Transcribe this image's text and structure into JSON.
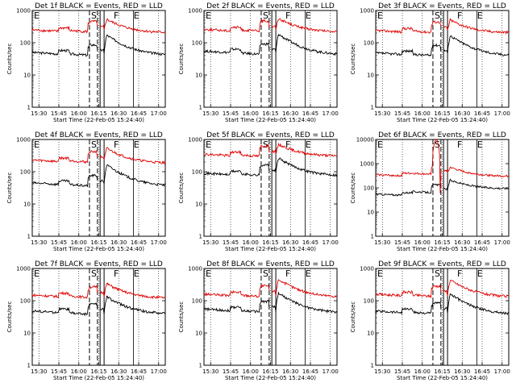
{
  "figure": {
    "colors": {
      "events": "#000000",
      "lld": "#e00000",
      "background": "#ffffff"
    },
    "x_tick_labels": [
      "15:30",
      "15:45",
      "16:00",
      "16:15",
      "16:30",
      "16:45",
      "17:00"
    ],
    "y_tick_labels": [
      "1",
      "10",
      "100",
      "1000"
    ],
    "y_tick_labels_big": [
      "1",
      "10",
      "100",
      "1000",
      "10000"
    ]
  },
  "chart_data": [
    {
      "type": "line",
      "title": "Det 1f BLACK = Events, RED = LLD",
      "xlabel": "Start Time (22-Feb-05 15:24:40)",
      "ylabel": "Counts/sec",
      "x_range_minutes_after_start": [
        0,
        100
      ],
      "ylim": [
        1,
        1000
      ],
      "log_y": true,
      "markers": [
        {
          "label": "E",
          "minute": 0
        },
        {
          "label": "S",
          "minute": 43
        },
        {
          "label": "F",
          "minute": 60
        },
        {
          "label": "E",
          "minute": 75
        }
      ],
      "dashed_lines_minutes": [
        43,
        49
      ],
      "solid_lines_minutes": [
        51,
        54
      ],
      "series": [
        {
          "name": "Events",
          "color": "#000000",
          "base": 50,
          "pre_dip": 45,
          "peak": 170,
          "end": 38
        },
        {
          "name": "LLD",
          "color": "#e00000",
          "base": 250,
          "pre_dip": 240,
          "peak": 520,
          "end": 190
        }
      ]
    },
    {
      "type": "line",
      "title": "Det 2f BLACK = Events, RED = LLD",
      "xlabel": "Start Time (22-Feb-05 15:24:40)",
      "ylabel": "Counts/sec",
      "x_range_minutes_after_start": [
        0,
        100
      ],
      "ylim": [
        1,
        1000
      ],
      "log_y": true,
      "markers": [
        {
          "label": "E",
          "minute": 0
        },
        {
          "label": "S",
          "minute": 43
        },
        {
          "label": "F",
          "minute": 60
        },
        {
          "label": "E",
          "minute": 75
        }
      ],
      "dashed_lines_minutes": [
        43,
        49
      ],
      "solid_lines_minutes": [
        51,
        54
      ],
      "series": [
        {
          "name": "Events",
          "color": "#000000",
          "base": 55,
          "pre_dip": 48,
          "peak": 180,
          "end": 38
        },
        {
          "name": "LLD",
          "color": "#e00000",
          "base": 260,
          "pre_dip": 250,
          "peak": 560,
          "end": 200
        }
      ]
    },
    {
      "type": "line",
      "title": "Det 3f BLACK = Events, RED = LLD",
      "xlabel": "Start Time (22-Feb-05 15:24:40)",
      "ylabel": "Counts/sec",
      "x_range_minutes_after_start": [
        0,
        100
      ],
      "ylim": [
        1,
        1000
      ],
      "log_y": true,
      "markers": [
        {
          "label": "E",
          "minute": 0
        },
        {
          "label": "S",
          "minute": 43
        },
        {
          "label": "F",
          "minute": 60
        },
        {
          "label": "E",
          "minute": 75
        }
      ],
      "dashed_lines_minutes": [
        43,
        49
      ],
      "solid_lines_minutes": [
        51,
        54
      ],
      "series": [
        {
          "name": "Events",
          "color": "#000000",
          "base": 48,
          "pre_dip": 44,
          "peak": 165,
          "end": 36
        },
        {
          "name": "LLD",
          "color": "#e00000",
          "base": 240,
          "pre_dip": 230,
          "peak": 500,
          "end": 190
        }
      ]
    },
    {
      "type": "line",
      "title": "Det 4f BLACK = Events, RED = LLD",
      "xlabel": "Start Time (22-Feb-05 15:24:40)",
      "ylabel": "Counts/sec",
      "x_range_minutes_after_start": [
        0,
        100
      ],
      "ylim": [
        1,
        1000
      ],
      "log_y": true,
      "markers": [
        {
          "label": "E",
          "minute": 0
        },
        {
          "label": "S",
          "minute": 43
        },
        {
          "label": "F",
          "minute": 60
        },
        {
          "label": "E",
          "minute": 75
        }
      ],
      "dashed_lines_minutes": [
        43,
        49
      ],
      "solid_lines_minutes": [
        51,
        54
      ],
      "series": [
        {
          "name": "Events",
          "color": "#000000",
          "base": 45,
          "pre_dip": 40,
          "peak": 160,
          "end": 33
        },
        {
          "name": "LLD",
          "color": "#e00000",
          "base": 230,
          "pre_dip": 220,
          "peak": 520,
          "end": 170
        }
      ]
    },
    {
      "type": "line",
      "title": "Det 5f BLACK = Events, RED = LLD",
      "xlabel": "Start Time (22-Feb-05 15:24:40)",
      "ylabel": "Counts/sec",
      "x_range_minutes_after_start": [
        0,
        100
      ],
      "ylim": [
        1,
        1000
      ],
      "log_y": true,
      "markers": [
        {
          "label": "E",
          "minute": 0
        },
        {
          "label": "S",
          "minute": 43
        },
        {
          "label": "F",
          "minute": 60
        },
        {
          "label": "E",
          "minute": 75
        }
      ],
      "dashed_lines_minutes": [
        43,
        49
      ],
      "solid_lines_minutes": [
        51,
        54
      ],
      "series": [
        {
          "name": "Events",
          "color": "#000000",
          "base": 90,
          "pre_dip": 85,
          "peak": 260,
          "end": 70
        },
        {
          "name": "LLD",
          "color": "#e00000",
          "base": 350,
          "pre_dip": 330,
          "peak": 700,
          "end": 290
        }
      ]
    },
    {
      "type": "line",
      "title": "Det 6f BLACK = Events, RED = LLD",
      "xlabel": "Start Time (22-Feb-05 15:24:40)",
      "ylabel": "Counts/sec",
      "x_range_minutes_after_start": [
        0,
        100
      ],
      "ylim": [
        1,
        10000
      ],
      "log_y": true,
      "markers": [
        {
          "label": "E",
          "minute": 0
        },
        {
          "label": "S",
          "minute": 43
        },
        {
          "label": "F",
          "minute": 60
        },
        {
          "label": "E",
          "minute": 75
        }
      ],
      "dashed_lines_minutes": [
        43,
        49
      ],
      "solid_lines_minutes": [
        51,
        54
      ],
      "series": [
        {
          "name": "Events",
          "color": "#000000",
          "base": 55,
          "pre_dip": 70,
          "peak": 220,
          "end": 100
        },
        {
          "name": "LLD",
          "color": "#e00000",
          "base": 350,
          "pre_dip": 400,
          "peak": 700,
          "end": 280,
          "burst": 9000
        }
      ]
    },
    {
      "type": "line",
      "title": "Det 7f BLACK = Events, RED = LLD",
      "xlabel": "Start Time (22-Feb-05 15:24:40)",
      "ylabel": "Counts/sec",
      "x_range_minutes_after_start": [
        0,
        100
      ],
      "ylim": [
        1,
        1000
      ],
      "log_y": true,
      "markers": [
        {
          "label": "E",
          "minute": 0
        },
        {
          "label": "S",
          "minute": 43
        },
        {
          "label": "F",
          "minute": 60
        },
        {
          "label": "E",
          "minute": 75
        }
      ],
      "dashed_lines_minutes": [
        43,
        49
      ],
      "solid_lines_minutes": [
        51,
        54
      ],
      "series": [
        {
          "name": "Events",
          "color": "#000000",
          "base": 48,
          "pre_dip": 42,
          "peak": 130,
          "end": 36
        },
        {
          "name": "LLD",
          "color": "#e00000",
          "base": 150,
          "pre_dip": 140,
          "peak": 330,
          "end": 110
        }
      ]
    },
    {
      "type": "line",
      "title": "Det 8f BLACK = Events, RED = LLD",
      "xlabel": "Start Time (22-Feb-05 15:24:40)",
      "ylabel": "Counts/sec",
      "x_range_minutes_after_start": [
        0,
        100
      ],
      "ylim": [
        1,
        1000
      ],
      "log_y": true,
      "markers": [
        {
          "label": "E",
          "minute": 0
        },
        {
          "label": "S",
          "minute": 43
        },
        {
          "label": "F",
          "minute": 60
        },
        {
          "label": "E",
          "minute": 75
        }
      ],
      "dashed_lines_minutes": [
        43,
        49
      ],
      "solid_lines_minutes": [
        51,
        54
      ],
      "series": [
        {
          "name": "Events",
          "color": "#000000",
          "base": 55,
          "pre_dip": 50,
          "peak": 170,
          "end": 38
        },
        {
          "name": "LLD",
          "color": "#e00000",
          "base": 160,
          "pre_dip": 150,
          "peak": 450,
          "end": 120
        }
      ]
    },
    {
      "type": "line",
      "title": "Det 9f BLACK = Events, RED = LLD",
      "xlabel": "Start Time (22-Feb-05 15:24:40)",
      "ylabel": "Counts/sec",
      "x_range_minutes_after_start": [
        0,
        100
      ],
      "ylim": [
        1,
        1000
      ],
      "log_y": true,
      "markers": [
        {
          "label": "E",
          "minute": 0
        },
        {
          "label": "S",
          "minute": 43
        },
        {
          "label": "F",
          "minute": 60
        },
        {
          "label": "E",
          "minute": 75
        }
      ],
      "dashed_lines_minutes": [
        43,
        49
      ],
      "solid_lines_minutes": [
        51,
        54
      ],
      "series": [
        {
          "name": "Events",
          "color": "#000000",
          "base": 48,
          "pre_dip": 44,
          "peak": 160,
          "end": 35
        },
        {
          "name": "LLD",
          "color": "#e00000",
          "base": 160,
          "pre_dip": 150,
          "peak": 430,
          "end": 120
        }
      ]
    }
  ]
}
